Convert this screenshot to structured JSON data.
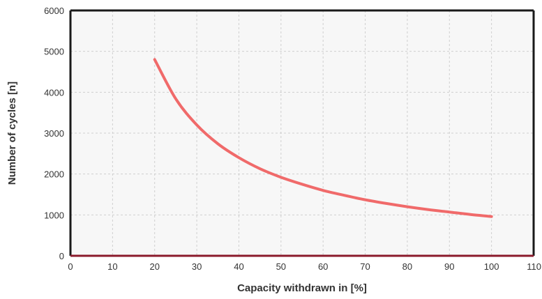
{
  "chart_data": {
    "type": "line",
    "title": "",
    "xlabel": "Capacity withdrawn in [%]",
    "ylabel": "Number of cycles [n]",
    "xlim": [
      0,
      110
    ],
    "ylim": [
      0,
      6000
    ],
    "x_ticks": [
      "0",
      "10",
      "20",
      "30",
      "40",
      "50",
      "60",
      "70",
      "80",
      "90",
      "100",
      "110"
    ],
    "y_ticks": [
      "0",
      "1000",
      "2000",
      "3000",
      "4000",
      "5000",
      "6000"
    ],
    "grid": true,
    "legend": "none",
    "colors": {
      "line": "#f06a6a",
      "frame": "#1a1a1a",
      "frame_bottom": "#8b1a2b",
      "plot_bg": "#f7f7f7",
      "grid": "#cfcfcf"
    },
    "series": [
      {
        "x": [
          20,
          25,
          30,
          35,
          40,
          45,
          50,
          55,
          60,
          65,
          70,
          75,
          80,
          85,
          90,
          95,
          100
        ],
        "y": [
          4800,
          3840,
          3200,
          2740,
          2400,
          2130,
          1920,
          1750,
          1600,
          1480,
          1370,
          1280,
          1200,
          1130,
          1070,
          1010,
          960
        ]
      }
    ]
  }
}
